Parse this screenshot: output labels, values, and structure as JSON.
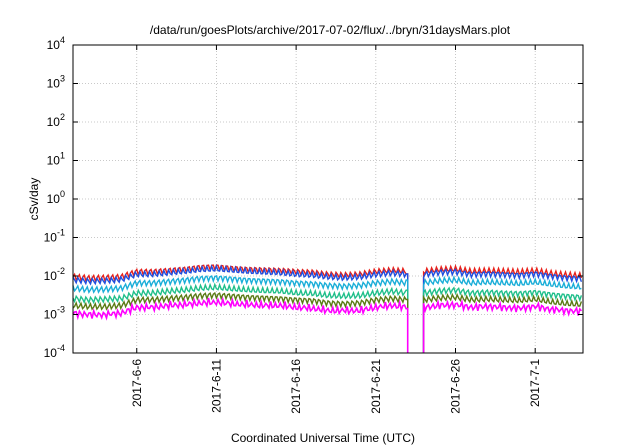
{
  "chart_data": {
    "type": "line",
    "title": "/data/run/goesPlots/archive/2017-07-02/flux/../bryn/31daysMars.plot",
    "xlabel": "Coordinated Universal Time (UTC)",
    "ylabel": "cSv/day",
    "y_scale": "log",
    "ylim": [
      0.0001,
      10000
    ],
    "xlim": [
      "2017-06-02",
      "2017-07-04"
    ],
    "grid": true,
    "legend": "none",
    "y_ticks": [
      {
        "value": 0.0001,
        "base": "10",
        "exp": "-4"
      },
      {
        "value": 0.001,
        "base": "10",
        "exp": "-3"
      },
      {
        "value": 0.01,
        "base": "10",
        "exp": "-2"
      },
      {
        "value": 0.1,
        "base": "10",
        "exp": "-1"
      },
      {
        "value": 1,
        "base": "10",
        "exp": "0"
      },
      {
        "value": 10,
        "base": "10",
        "exp": "1"
      },
      {
        "value": 100,
        "base": "10",
        "exp": "2"
      },
      {
        "value": 1000,
        "base": "10",
        "exp": "3"
      },
      {
        "value": 10000,
        "base": "10",
        "exp": "4"
      }
    ],
    "x_ticks": [
      {
        "date": "2017-06-06",
        "label": "2017-6-6"
      },
      {
        "date": "2017-06-11",
        "label": "2017-6-11"
      },
      {
        "date": "2017-06-16",
        "label": "2017-6-16"
      },
      {
        "date": "2017-06-21",
        "label": "2017-6-21"
      },
      {
        "date": "2017-06-26",
        "label": "2017-6-26"
      },
      {
        "date": "2017-07-01",
        "label": "2017-7-1"
      }
    ],
    "x": [
      "2017-06-02",
      "2017-06-03",
      "2017-06-04",
      "2017-06-05",
      "2017-06-06",
      "2017-06-07",
      "2017-06-08",
      "2017-06-09",
      "2017-06-10",
      "2017-06-11",
      "2017-06-12",
      "2017-06-13",
      "2017-06-14",
      "2017-06-15",
      "2017-06-16",
      "2017-06-17",
      "2017-06-18",
      "2017-06-19",
      "2017-06-20",
      "2017-06-21",
      "2017-06-22",
      "2017-06-23",
      "2017-06-24",
      "2017-06-25",
      "2017-06-26",
      "2017-06-27",
      "2017-06-28",
      "2017-06-29",
      "2017-06-30",
      "2017-07-01",
      "2017-07-02",
      "2017-07-03",
      "2017-07-04"
    ],
    "series": [
      {
        "color": "#e8211a",
        "values": [
          0.0095,
          0.0088,
          0.009,
          0.0095,
          0.013,
          0.013,
          0.014,
          0.015,
          0.017,
          0.0175,
          0.016,
          0.015,
          0.0145,
          0.014,
          0.013,
          0.0125,
          0.011,
          0.0105,
          0.011,
          0.013,
          0.014,
          0.013,
          0.013,
          0.0145,
          0.015,
          0.013,
          0.0135,
          0.013,
          0.0125,
          0.0135,
          0.0115,
          0.0105,
          0.01
        ]
      },
      {
        "color": "#1f4fe0",
        "values": [
          0.008,
          0.0073,
          0.0075,
          0.008,
          0.011,
          0.011,
          0.012,
          0.013,
          0.0145,
          0.015,
          0.014,
          0.013,
          0.0125,
          0.012,
          0.011,
          0.0105,
          0.0095,
          0.009,
          0.0095,
          0.011,
          0.012,
          0.011,
          0.011,
          0.0125,
          0.013,
          0.011,
          0.0115,
          0.011,
          0.0105,
          0.0115,
          0.01,
          0.009,
          0.0085
        ]
      },
      {
        "color": "#1aaed8",
        "values": [
          0.0048,
          0.0044,
          0.0045,
          0.0048,
          0.0066,
          0.0066,
          0.0072,
          0.0078,
          0.0087,
          0.009,
          0.0084,
          0.0078,
          0.0075,
          0.0072,
          0.0066,
          0.0063,
          0.0057,
          0.0054,
          0.0057,
          0.0066,
          0.0072,
          0.0066,
          0.0066,
          0.0075,
          0.0078,
          0.0066,
          0.0069,
          0.0066,
          0.0063,
          0.0069,
          0.006,
          0.0054,
          0.0051
        ]
      },
      {
        "color": "#1fbf8a",
        "values": [
          0.0026,
          0.0024,
          0.0025,
          0.0026,
          0.0036,
          0.0036,
          0.004,
          0.0043,
          0.0048,
          0.005,
          0.0046,
          0.0043,
          0.0041,
          0.004,
          0.0036,
          0.0035,
          0.0031,
          0.003,
          0.0031,
          0.0036,
          0.004,
          0.0036,
          0.0036,
          0.0041,
          0.0043,
          0.0036,
          0.0038,
          0.0036,
          0.0035,
          0.0038,
          0.0033,
          0.003,
          0.0028
        ]
      },
      {
        "color": "#5a7a14",
        "values": [
          0.0017,
          0.0016,
          0.0016,
          0.0017,
          0.0024,
          0.0024,
          0.0026,
          0.0028,
          0.0031,
          0.0032,
          0.003,
          0.0028,
          0.0027,
          0.0026,
          0.0024,
          0.0023,
          0.002,
          0.0019,
          0.002,
          0.0024,
          0.0026,
          0.0024,
          0.0024,
          0.0027,
          0.0028,
          0.0024,
          0.0025,
          0.0024,
          0.0023,
          0.0025,
          0.0021,
          0.0019,
          0.0018
        ]
      },
      {
        "color": "#ff00ff",
        "values": [
          0.0012,
          0.0011,
          0.0011,
          0.0012,
          0.0017,
          0.0017,
          0.0019,
          0.002,
          0.0022,
          0.0023,
          0.0021,
          0.002,
          0.0019,
          0.0019,
          0.0017,
          0.0016,
          0.0014,
          0.0014,
          0.0014,
          0.0017,
          0.0019,
          0.0017,
          0.0017,
          0.0019,
          0.002,
          0.0017,
          0.0018,
          0.0017,
          0.0016,
          0.0018,
          0.0015,
          0.0014,
          0.0013
        ]
      }
    ],
    "data_gap": {
      "start": "2017-06-23",
      "end": "2017-06-24",
      "min_value": 0.0001
    }
  }
}
